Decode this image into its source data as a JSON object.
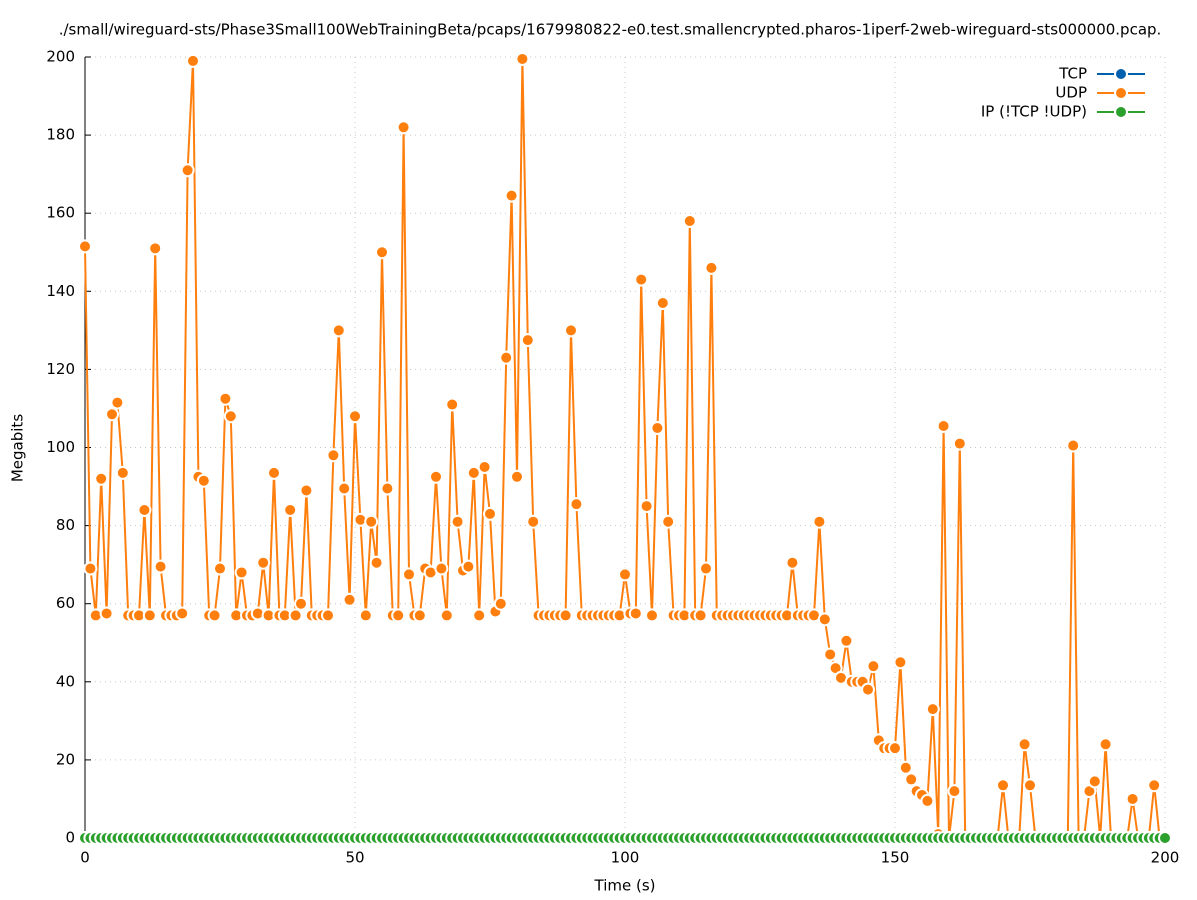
{
  "chart_data": {
    "type": "line",
    "title": "./small/wireguard-sts/Phase3Small100WebTrainingBeta/pcaps/1679980822-e0.test.smallencrypted.pharos-1iperf-2web-wireguard-sts000000.pcap.",
    "xlabel": "Time (s)",
    "ylabel": "Megabits",
    "xlim": [
      0,
      200
    ],
    "xticks": [
      0,
      50,
      100,
      150,
      200
    ],
    "ylim": [
      0,
      200
    ],
    "yticks": [
      0,
      20,
      40,
      60,
      80,
      100,
      120,
      140,
      160,
      180,
      200
    ],
    "grid": true,
    "legend": "top-right",
    "x": [
      0,
      1,
      2,
      3,
      4,
      5,
      6,
      7,
      8,
      9,
      10,
      11,
      12,
      13,
      14,
      15,
      16,
      17,
      18,
      19,
      20,
      21,
      22,
      23,
      24,
      25,
      26,
      27,
      28,
      29,
      30,
      31,
      32,
      33,
      34,
      35,
      36,
      37,
      38,
      39,
      40,
      41,
      42,
      43,
      44,
      45,
      46,
      47,
      48,
      49,
      50,
      51,
      52,
      53,
      54,
      55,
      56,
      57,
      58,
      59,
      60,
      61,
      62,
      63,
      64,
      65,
      66,
      67,
      68,
      69,
      70,
      71,
      72,
      73,
      74,
      75,
      76,
      77,
      78,
      79,
      80,
      81,
      82,
      83,
      84,
      85,
      86,
      87,
      88,
      89,
      90,
      91,
      92,
      93,
      94,
      95,
      96,
      97,
      98,
      99,
      100,
      101,
      102,
      103,
      104,
      105,
      106,
      107,
      108,
      109,
      110,
      111,
      112,
      113,
      114,
      115,
      116,
      117,
      118,
      119,
      120,
      121,
      122,
      123,
      124,
      125,
      126,
      127,
      128,
      129,
      130,
      131,
      132,
      133,
      134,
      135,
      136,
      137,
      138,
      139,
      140,
      141,
      142,
      143,
      144,
      145,
      146,
      147,
      148,
      149,
      150,
      151,
      152,
      153,
      154,
      155,
      156,
      157,
      158,
      159,
      160,
      161,
      162,
      163,
      164,
      165,
      166,
      167,
      168,
      169,
      170,
      171,
      172,
      173,
      174,
      175,
      176,
      177,
      178,
      179,
      180,
      181,
      182,
      183,
      184,
      185,
      186,
      187,
      188,
      189,
      190,
      191,
      192,
      193,
      194,
      195,
      196,
      197,
      198,
      199,
      200
    ],
    "series": [
      {
        "name": "TCP",
        "color": "#0060ad",
        "values": [
          0,
          0,
          0,
          0,
          0,
          0,
          0,
          0,
          0,
          0,
          0,
          0,
          0,
          0,
          0,
          0,
          0,
          0,
          0,
          0,
          0,
          0,
          0,
          0,
          0,
          0,
          0,
          0,
          0,
          0,
          0,
          0,
          0,
          0,
          0,
          0,
          0,
          0,
          0,
          0,
          0,
          0,
          0,
          0,
          0,
          0,
          0,
          0,
          0,
          0,
          0,
          0,
          0,
          0,
          0,
          0,
          0,
          0,
          0,
          0,
          0,
          0,
          0,
          0,
          0,
          0,
          0,
          0,
          0,
          0,
          0,
          0,
          0,
          0,
          0,
          0,
          0,
          0,
          0,
          0,
          0,
          0,
          0,
          0,
          0,
          0,
          0,
          0,
          0,
          0,
          0,
          0,
          0,
          0,
          0,
          0,
          0,
          0,
          0,
          0,
          0,
          0,
          0,
          0,
          0,
          0,
          0,
          0,
          0,
          0,
          0,
          0,
          0,
          0,
          0,
          0,
          0,
          0,
          0,
          0,
          0,
          0,
          0,
          0,
          0,
          0,
          0,
          0,
          0,
          0,
          0,
          0,
          0,
          0,
          0,
          0,
          0,
          0,
          0,
          0,
          0,
          0,
          0,
          0,
          0,
          0,
          0,
          0,
          0,
          0,
          0,
          0,
          0,
          0,
          0,
          0,
          0,
          0,
          0,
          0,
          0,
          0,
          0,
          0,
          0,
          0,
          0,
          0,
          0,
          0,
          0,
          0,
          0,
          0,
          0,
          0,
          0,
          0,
          0,
          0,
          0,
          0,
          0,
          0,
          0,
          0,
          0,
          0,
          0,
          0,
          0,
          0,
          0,
          0,
          0,
          0,
          0,
          0,
          0,
          0,
          0
        ]
      },
      {
        "name": "UDP",
        "color": "#ff7f0e",
        "values": [
          151.5,
          69,
          57,
          92,
          57.5,
          108.5,
          111.5,
          93.5,
          57,
          57,
          57,
          84,
          57,
          151,
          69.5,
          57,
          57,
          57,
          57.5,
          171,
          199,
          92.5,
          91.5,
          57,
          57,
          69,
          112.5,
          108,
          57,
          68,
          57,
          57,
          57.5,
          70.5,
          57,
          93.5,
          57,
          57,
          84,
          57,
          60,
          89,
          57,
          57,
          57,
          57,
          98,
          130,
          89.5,
          61,
          108,
          81.5,
          57,
          81,
          70.5,
          150,
          89.5,
          57,
          57,
          182,
          67.5,
          57,
          57,
          69,
          68,
          92.5,
          69,
          57,
          111,
          81,
          68.5,
          69.5,
          93.5,
          57,
          95,
          83,
          58,
          60,
          123,
          164.5,
          92.5,
          199.5,
          127.5,
          81,
          57,
          57,
          57,
          57,
          57,
          57,
          130,
          85.5,
          57,
          57,
          57,
          57,
          57,
          57,
          57,
          57,
          67.5,
          57.5,
          57.5,
          143,
          85,
          57,
          105,
          137,
          81,
          57,
          57,
          57,
          158,
          57,
          57,
          69,
          146,
          57,
          57,
          57,
          57,
          57,
          57,
          57,
          57,
          57,
          57,
          57,
          57,
          57,
          57,
          70.5,
          57,
          57,
          57,
          57,
          81,
          56,
          47,
          43.5,
          41,
          50.5,
          40,
          40,
          40,
          38,
          44,
          25,
          23,
          23,
          23,
          45,
          18,
          15,
          12,
          11,
          9.5,
          33,
          1,
          105.5,
          0,
          12,
          101,
          0,
          0,
          0,
          0,
          0,
          0,
          0,
          13.5,
          0,
          0,
          0,
          24,
          13.5,
          0,
          0,
          0,
          0,
          0,
          0,
          0,
          100.5,
          0,
          0,
          12,
          14.5,
          0,
          24,
          0,
          0,
          0,
          0,
          10,
          0,
          0,
          0,
          13.5,
          0,
          0
        ]
      },
      {
        "name": "IP (!TCP  !UDP)",
        "color": "#2ca02c",
        "values": [
          0,
          0,
          0,
          0,
          0,
          0,
          0,
          0,
          0,
          0,
          0,
          0,
          0,
          0,
          0,
          0,
          0,
          0,
          0,
          0,
          0,
          0,
          0,
          0,
          0,
          0,
          0,
          0,
          0,
          0,
          0,
          0,
          0,
          0,
          0,
          0,
          0,
          0,
          0,
          0,
          0,
          0,
          0,
          0,
          0,
          0,
          0,
          0,
          0,
          0,
          0,
          0,
          0,
          0,
          0,
          0,
          0,
          0,
          0,
          0,
          0,
          0,
          0,
          0,
          0,
          0,
          0,
          0,
          0,
          0,
          0,
          0,
          0,
          0,
          0,
          0,
          0,
          0,
          0,
          0,
          0,
          0,
          0,
          0,
          0,
          0,
          0,
          0,
          0,
          0,
          0,
          0,
          0,
          0,
          0,
          0,
          0,
          0,
          0,
          0,
          0,
          0,
          0,
          0,
          0,
          0,
          0,
          0,
          0,
          0,
          0,
          0,
          0,
          0,
          0,
          0,
          0,
          0,
          0,
          0,
          0,
          0,
          0,
          0,
          0,
          0,
          0,
          0,
          0,
          0,
          0,
          0,
          0,
          0,
          0,
          0,
          0,
          0,
          0,
          0,
          0,
          0,
          0,
          0,
          0,
          0,
          0,
          0,
          0,
          0,
          0,
          0,
          0,
          0,
          0,
          0,
          0,
          0,
          0,
          0,
          0,
          0,
          0,
          0,
          0,
          0,
          0,
          0,
          0,
          0,
          0,
          0,
          0,
          0,
          0,
          0,
          0,
          0,
          0,
          0,
          0,
          0,
          0,
          0,
          0,
          0,
          0,
          0,
          0,
          0,
          0,
          0,
          0,
          0,
          0,
          0,
          0,
          0,
          0,
          0,
          0
        ]
      }
    ]
  }
}
